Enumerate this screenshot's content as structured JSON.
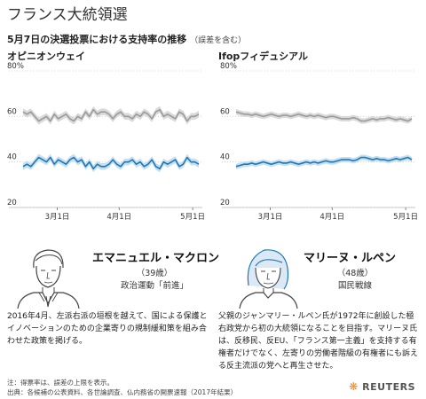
{
  "title": "フランス大統領選",
  "subtitle": "5月7日の決選投票における支持率の推移",
  "subtitle_note": "（誤差を含む）",
  "colors": {
    "macron": "#1f78b4",
    "lepen": "#9a9a9a",
    "band_macron": "#c6dff0",
    "band_lepen": "#dadada",
    "grid": "#cccccc"
  },
  "chart_data": [
    {
      "type": "line",
      "title": "オピニオンウェイ",
      "ylim": [
        20,
        80
      ],
      "yticks": [
        {
          "value": 80,
          "label": "80%"
        },
        {
          "value": 60,
          "label": "60"
        },
        {
          "value": 40,
          "label": "40"
        },
        {
          "value": 20,
          "label": "20"
        }
      ],
      "xticks": [
        {
          "x": 0.25,
          "label": "3月1日"
        },
        {
          "x": 0.57,
          "label": "4月1日"
        },
        {
          "x": 0.95,
          "label": "5月1日"
        }
      ],
      "error_margin": 1.5,
      "series": [
        {
          "key": "macron",
          "values": [
            38,
            39,
            38,
            40,
            42,
            41,
            40,
            42,
            39,
            41,
            40,
            39,
            41,
            42,
            40,
            41,
            38,
            40,
            37,
            39,
            38,
            38,
            39,
            41,
            39,
            38,
            40,
            40,
            41,
            39,
            40,
            38,
            39,
            41,
            38,
            37,
            40,
            39,
            40,
            41,
            38,
            39,
            42,
            40,
            40,
            39
          ]
        },
        {
          "key": "lepen",
          "values": [
            62,
            61,
            62,
            60,
            58,
            59,
            60,
            58,
            61,
            59,
            60,
            61,
            59,
            58,
            60,
            59,
            62,
            60,
            63,
            61,
            62,
            62,
            61,
            59,
            61,
            62,
            60,
            60,
            59,
            61,
            60,
            62,
            61,
            59,
            62,
            63,
            60,
            61,
            60,
            59,
            62,
            61,
            58,
            60,
            60,
            61
          ]
        }
      ]
    },
    {
      "type": "line",
      "title": "Ifopフィデュシアル",
      "ylim": [
        20,
        80
      ],
      "yticks": [
        {
          "value": 80,
          "label": "80%"
        },
        {
          "value": 60,
          "label": "60"
        },
        {
          "value": 40,
          "label": "40"
        },
        {
          "value": 20,
          "label": "20"
        }
      ],
      "xticks": [
        {
          "x": 0.25,
          "label": "3月1日"
        },
        {
          "x": 0.57,
          "label": "4月1日"
        },
        {
          "x": 0.95,
          "label": "5月1日"
        }
      ],
      "error_margin": 1.2,
      "series": [
        {
          "key": "macron",
          "values": [
            38,
            38.5,
            39,
            39,
            39.5,
            39,
            39.5,
            40,
            39.5,
            39,
            39.5,
            40,
            39.5,
            39.5,
            40,
            39.5,
            39,
            39.5,
            40,
            39.5,
            40,
            39.5,
            40,
            40.5,
            40,
            40,
            40.5,
            41,
            41,
            41,
            40.5,
            41,
            42,
            42,
            41.5,
            41,
            41.5,
            41,
            41,
            40.5,
            41,
            41.5,
            41,
            41.5,
            42,
            41
          ]
        },
        {
          "key": "lepen",
          "values": [
            62,
            61.5,
            61,
            61,
            60.5,
            61,
            60.5,
            60,
            60.5,
            61,
            60.5,
            60,
            60.5,
            60.5,
            60,
            60.5,
            61,
            60.5,
            60,
            60.5,
            60,
            60.5,
            60,
            59.5,
            60,
            60,
            59.5,
            59,
            59,
            59,
            59.5,
            59,
            58,
            58,
            58.5,
            59,
            58.5,
            59,
            59,
            59.5,
            59,
            58.5,
            59,
            58.5,
            58,
            59
          ]
        }
      ]
    }
  ],
  "candidates": [
    {
      "name": "エマニュエル・マクロン",
      "age": "（39歳）",
      "party": "政治運動「前進」",
      "description": "2016年4月、左派右派の垣根を越えて、国による保護とイノベーションのための企業寄りの規制緩和策を組み合わせた政策を掲げる。"
    },
    {
      "name": "マリーヌ・ルペン",
      "age": "（48歳）",
      "party": "国民戦線",
      "description": "父親のジャンマリー・ルペン氏が1972年に創設した極右政党から初の大統領になることを目指す。マリーヌ氏は、反移民、反EU、「フランス第一主義」を支持する有権者だけでなく、左寄りの労働者階級の有権者にも訴える反主流派の党へと再生させた。"
    }
  ],
  "footer": {
    "note": "注：得票率は、誤差の上限を表示。",
    "source": "出典：各候補の公表資料、各世論調査、仏内務省の開票速報（2017年結果）"
  },
  "logo_text": "REUTERS"
}
